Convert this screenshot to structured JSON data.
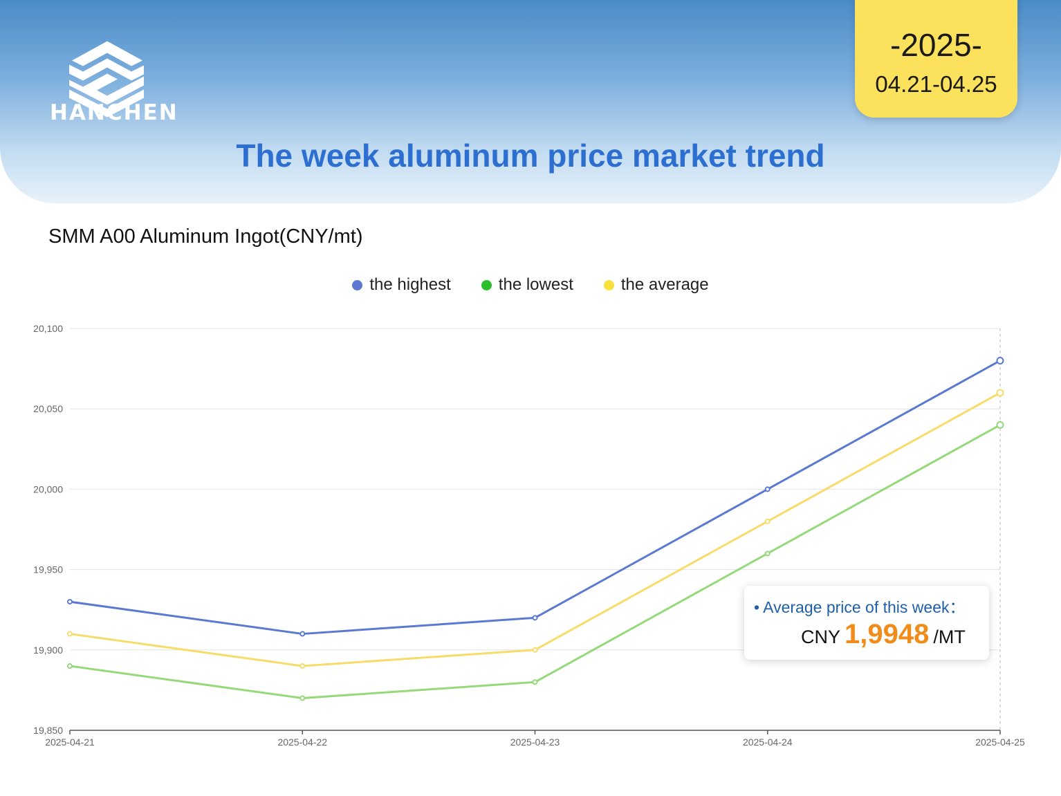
{
  "brand": {
    "name": "HANCHEN",
    "logo_color": "#ffffff"
  },
  "date_card": {
    "year": "-2025-",
    "range": "04.21-04.25",
    "color": "#fce15c"
  },
  "page_title": "The week aluminum price market trend",
  "chart_data": {
    "type": "line",
    "title": "SMM A00 Aluminum Ingot(CNY/mt)",
    "xlabel": "",
    "ylabel": "",
    "categories": [
      "2025-04-21",
      "2025-04-22",
      "2025-04-23",
      "2025-04-24",
      "2025-04-25"
    ],
    "ylim": [
      19850,
      20100
    ],
    "yticks": [
      "19,850",
      "19,900",
      "19,950",
      "20,000",
      "20,050",
      "20,100"
    ],
    "ytick_values": [
      19850,
      19900,
      19950,
      20000,
      20050,
      20100
    ],
    "grid": true,
    "legend_position": "top",
    "series": [
      {
        "name": "the highest",
        "color": "#5b79d1",
        "values": [
          19930,
          19910,
          19920,
          20000,
          20080
        ]
      },
      {
        "name": "the lowest",
        "color": "#95d97a",
        "legend_color": "#2bbf2b",
        "values": [
          19890,
          19870,
          19880,
          19960,
          20040
        ]
      },
      {
        "name": "the average",
        "color": "#f7dc6a",
        "legend_color": "#f7e23b",
        "values": [
          19910,
          19890,
          19900,
          19980,
          20060
        ]
      }
    ]
  },
  "average_box": {
    "label": "• Average price of this week：",
    "currency": "CNY",
    "value": "1,9948",
    "unit": "/MT"
  }
}
